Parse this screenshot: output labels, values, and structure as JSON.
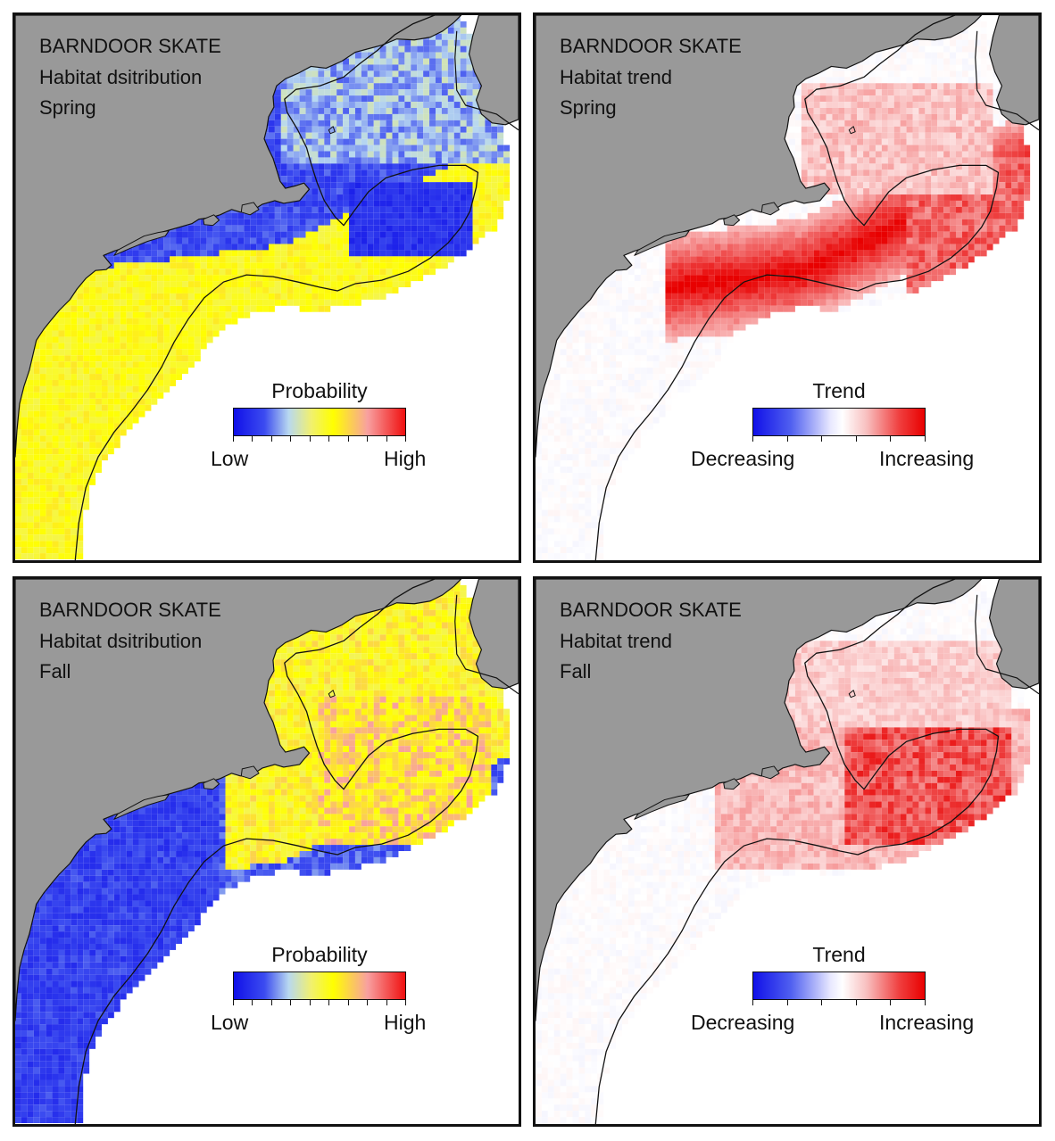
{
  "panels": [
    {
      "id": "spring-distribution",
      "title_lines": [
        "BARNDOOR SKATE",
        "Habitat dsitribution",
        "Spring"
      ],
      "legend": {
        "title": "Probability",
        "low": "Low",
        "high": "High",
        "scale": "probability"
      }
    },
    {
      "id": "spring-trend",
      "title_lines": [
        "BARNDOOR SKATE",
        "Habitat trend",
        "Spring"
      ],
      "legend": {
        "title": "Trend",
        "low": "Decreasing",
        "high": "Increasing",
        "scale": "trend"
      }
    },
    {
      "id": "fall-distribution",
      "title_lines": [
        "BARNDOOR SKATE",
        "Habitat dsitribution",
        "Fall"
      ],
      "legend": {
        "title": "Probability",
        "low": "Low",
        "high": "High",
        "scale": "probability"
      }
    },
    {
      "id": "fall-trend",
      "title_lines": [
        "BARNDOOR SKATE",
        "Habitat trend",
        "Fall"
      ],
      "legend": {
        "title": "Trend",
        "low": "Decreasing",
        "high": "Increasing",
        "scale": "trend"
      }
    }
  ],
  "colors": {
    "land": "#999999",
    "ocean": "#ffffff",
    "contour": "#111111",
    "prob_low": "#1010e8",
    "prob_mid": "#ffff00",
    "prob_high": "#f01010",
    "trend_decrease": "#1010e8",
    "trend_increase": "#e80000"
  }
}
